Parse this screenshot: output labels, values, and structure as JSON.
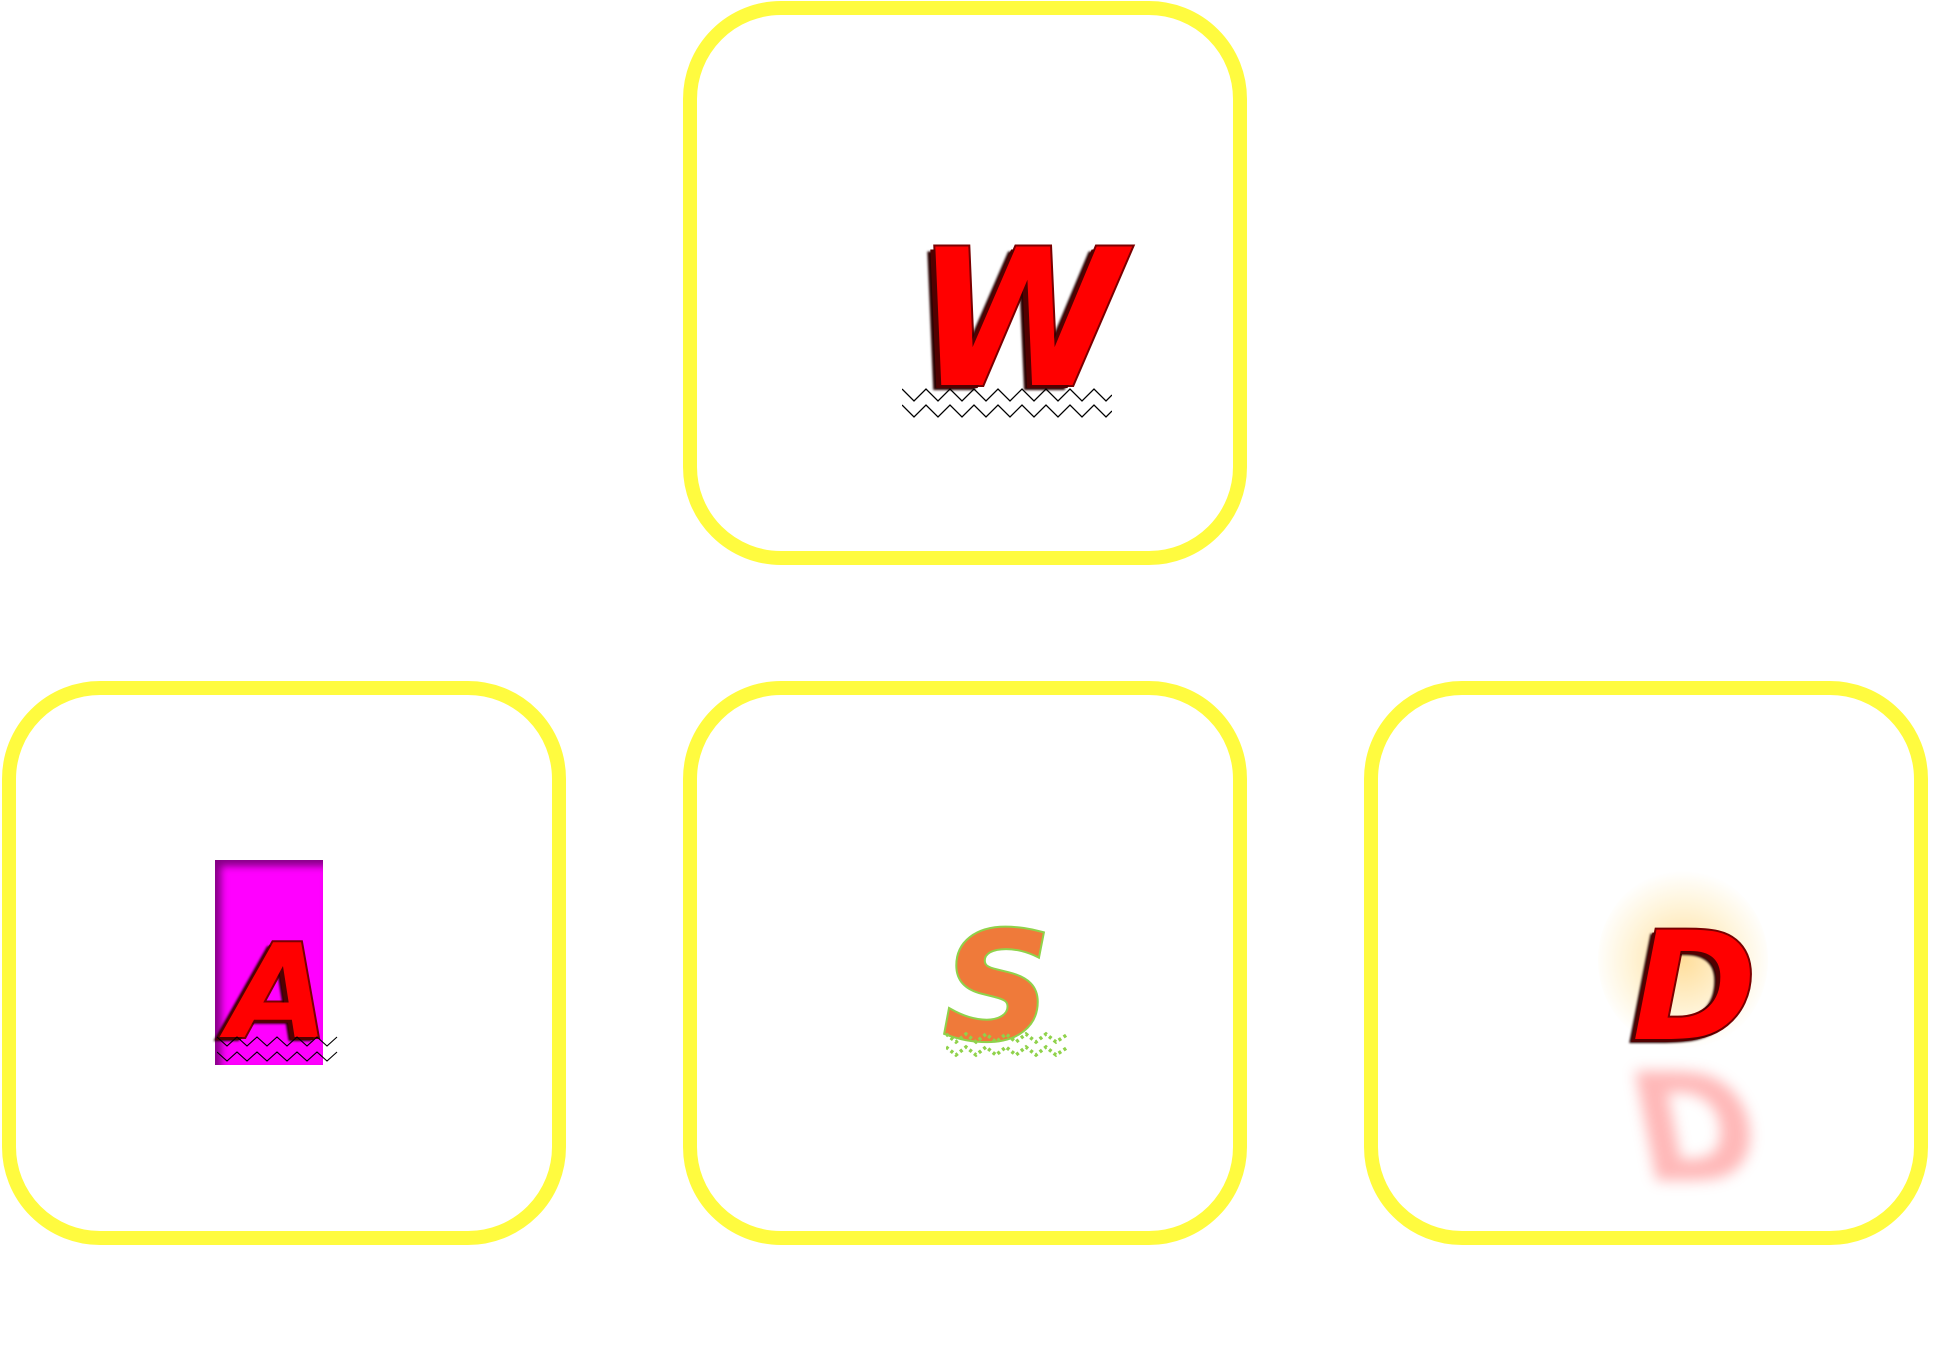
{
  "keys": {
    "w": {
      "label": "W",
      "letter_color": "#ff0000",
      "zigzag_color": "#000000"
    },
    "a": {
      "label": "A",
      "letter_color": "#ff0000",
      "box_color": "#ff00ff",
      "zigzag_color": "#000000"
    },
    "s": {
      "label": "S",
      "letter_color": "#ef7a3a",
      "outline_color": "#8fd24a",
      "zigzag_color": "#8fd24a"
    },
    "d": {
      "label": "D",
      "letter_color": "#ff0000",
      "glow_color": "#ffc85a"
    }
  },
  "key_border_color": "#fffb3f"
}
